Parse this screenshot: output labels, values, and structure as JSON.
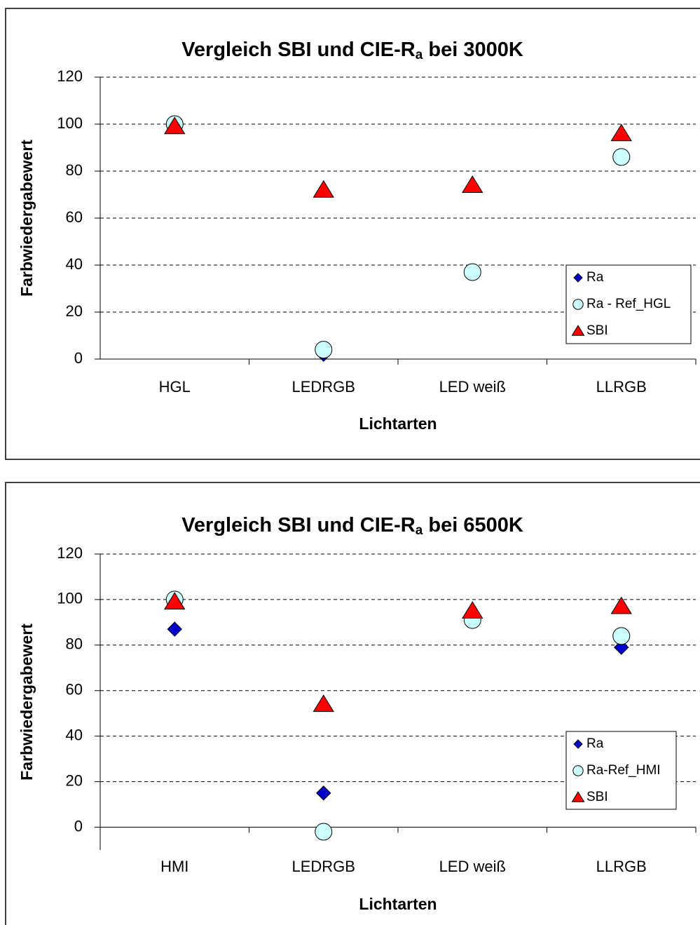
{
  "chart_data": [
    {
      "type": "scatter",
      "title": [
        "Vergleich SBI und CIE-R",
        "a",
        " bei 3000K"
      ],
      "y_label": "Farbwiedergabewert",
      "x_label": "Lichtarten",
      "categories": [
        "HGL",
        "LEDRGB",
        "LED weiß",
        "LLRGB"
      ],
      "series": [
        {
          "name": "Ra",
          "color": "#0000cc",
          "marker": "diamond",
          "values": [
            99,
            2,
            37,
            86
          ]
        },
        {
          "name": "Ra - Ref_HGL",
          "color": "#ccffff",
          "marker": "circle",
          "values": [
            100,
            4,
            37,
            86
          ]
        },
        {
          "name": "SBI",
          "color": "#ff0000",
          "marker": "triangle",
          "values": [
            99,
            72,
            74,
            96
          ]
        }
      ],
      "ylim": [
        0,
        120
      ],
      "yticks": [
        0,
        20,
        40,
        60,
        80,
        100,
        120
      ],
      "grid": true,
      "legend": "right"
    },
    {
      "type": "scatter",
      "title": [
        "Vergleich SBI und CIE-R",
        "a",
        " bei 6500K"
      ],
      "y_label": "Farbwiedergabewert",
      "x_label": "Lichtarten",
      "categories": [
        "HMI",
        "LEDRGB",
        "LED weiß",
        "LLRGB"
      ],
      "series": [
        {
          "name": "Ra",
          "color": "#0000cc",
          "marker": "diamond",
          "values": [
            87,
            15,
            92,
            79
          ]
        },
        {
          "name": "Ra-Ref_HMI",
          "color": "#ccffff",
          "marker": "circle",
          "values": [
            100,
            -2,
            91,
            84
          ]
        },
        {
          "name": "SBI",
          "color": "#ff0000",
          "marker": "triangle",
          "values": [
            99,
            54,
            95,
            97
          ]
        }
      ],
      "ylim": [
        -10,
        120
      ],
      "yticks": [
        0,
        20,
        40,
        60,
        80,
        100,
        120
      ],
      "grid": true,
      "legend": "right"
    }
  ]
}
